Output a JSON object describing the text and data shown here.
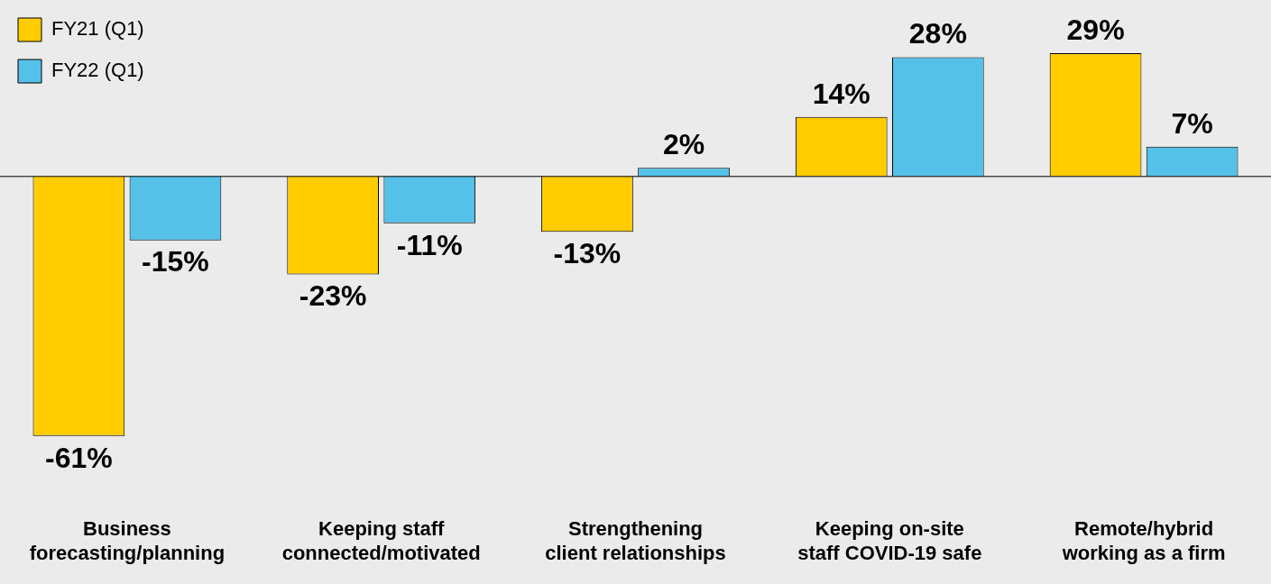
{
  "chart_data": {
    "type": "bar",
    "categories": [
      "Business forecasting/planning",
      "Keeping staff connected/motivated",
      "Strengthening client relationships",
      "Keeping on-site staff COVID-19 safe",
      "Remote/hybrid working as a firm"
    ],
    "series": [
      {
        "name": "FY21 (Q1)",
        "color": "#ffcc00",
        "values": [
          -61,
          -23,
          -13,
          14,
          29
        ],
        "value_labels": [
          "-61%",
          "-23%",
          "-13%",
          "14%",
          "29%"
        ]
      },
      {
        "name": "FY22 (Q1)",
        "color": "#55c1e8",
        "values": [
          -15,
          -11,
          2,
          28,
          7
        ],
        "value_labels": [
          "-15%",
          "-11%",
          "2%",
          "28%",
          "7%"
        ]
      }
    ],
    "legend": "top left"
  }
}
